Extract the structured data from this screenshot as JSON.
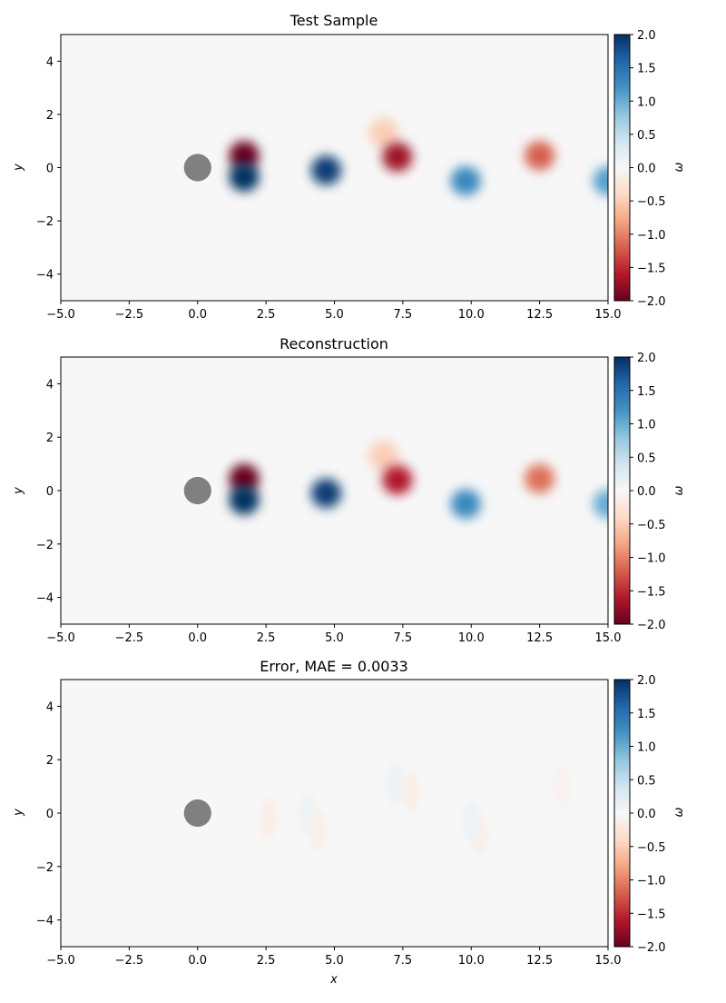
{
  "chart_data": [
    {
      "type": "heatmap",
      "title": "Test Sample",
      "xlabel": "",
      "ylabel": "y",
      "xlim": [
        -5,
        15
      ],
      "ylim": [
        -5,
        5
      ],
      "xticks": [
        "−5.0",
        "−2.5",
        "0.0",
        "2.5",
        "5.0",
        "7.5",
        "10.0",
        "12.5",
        "15.0"
      ],
      "yticks": [
        "−4",
        "−2",
        "0",
        "2",
        "4"
      ],
      "colorbar": {
        "label": "ω",
        "range": [
          -2,
          2
        ],
        "ticks": [
          "−2.0",
          "−1.5",
          "−1.0",
          "−0.5",
          "0.0",
          "0.5",
          "1.0",
          "1.5",
          "2.0"
        ],
        "colormap": "RdBu"
      },
      "obstacle": {
        "shape": "circle",
        "center": [
          0,
          0
        ],
        "radius": 0.5
      },
      "vortices": [
        {
          "x": 1.7,
          "y": 0.45,
          "value": -2.0
        },
        {
          "x": 1.7,
          "y": -0.35,
          "value": 2.0
        },
        {
          "x": 4.7,
          "y": -0.1,
          "value": 1.9
        },
        {
          "x": 6.8,
          "y": 1.3,
          "value": -0.5
        },
        {
          "x": 7.3,
          "y": 0.4,
          "value": -1.7
        },
        {
          "x": 9.8,
          "y": -0.5,
          "value": 1.3
        },
        {
          "x": 12.5,
          "y": 0.45,
          "value": -1.2
        },
        {
          "x": 15.0,
          "y": -0.5,
          "value": 1.1
        }
      ]
    },
    {
      "type": "heatmap",
      "title": "Reconstruction",
      "xlabel": "",
      "ylabel": "y",
      "xlim": [
        -5,
        15
      ],
      "ylim": [
        -5,
        5
      ],
      "xticks": [
        "−5.0",
        "−2.5",
        "0.0",
        "2.5",
        "5.0",
        "7.5",
        "10.0",
        "12.5",
        "15.0"
      ],
      "yticks": [
        "−4",
        "−2",
        "0",
        "2",
        "4"
      ],
      "colorbar": {
        "label": "ω",
        "range": [
          -2,
          2
        ],
        "ticks": [
          "−2.0",
          "−1.5",
          "−1.0",
          "−0.5",
          "0.0",
          "0.5",
          "1.0",
          "1.5",
          "2.0"
        ],
        "colormap": "RdBu"
      },
      "obstacle": {
        "shape": "circle",
        "center": [
          0,
          0
        ],
        "radius": 0.5
      },
      "vortices": [
        {
          "x": 1.7,
          "y": 0.45,
          "value": -2.0
        },
        {
          "x": 1.7,
          "y": -0.35,
          "value": 2.0
        },
        {
          "x": 4.7,
          "y": -0.1,
          "value": 1.9
        },
        {
          "x": 6.8,
          "y": 1.3,
          "value": -0.5
        },
        {
          "x": 7.3,
          "y": 0.4,
          "value": -1.6
        },
        {
          "x": 9.8,
          "y": -0.5,
          "value": 1.3
        },
        {
          "x": 12.5,
          "y": 0.45,
          "value": -1.1
        },
        {
          "x": 15.0,
          "y": -0.5,
          "value": 1.0
        }
      ]
    },
    {
      "type": "heatmap",
      "title": "Error, MAE = 0.0033",
      "xlabel": "x",
      "ylabel": "y",
      "xlim": [
        -5,
        15
      ],
      "ylim": [
        -5,
        5
      ],
      "xticks": [
        "−5.0",
        "−2.5",
        "0.0",
        "2.5",
        "5.0",
        "7.5",
        "10.0",
        "12.5",
        "15.0"
      ],
      "yticks": [
        "−4",
        "−2",
        "0",
        "2",
        "4"
      ],
      "colorbar": {
        "label": "ω",
        "range": [
          -2,
          2
        ],
        "ticks": [
          "−2.0",
          "−1.5",
          "−1.0",
          "−0.5",
          "0.0",
          "0.5",
          "1.0",
          "1.5",
          "2.0"
        ],
        "colormap": "RdBu"
      },
      "obstacle": {
        "shape": "circle",
        "center": [
          0,
          0
        ],
        "radius": 0.5
      },
      "vortices": [
        {
          "x": 2.6,
          "y": -0.2,
          "value": -0.12
        },
        {
          "x": 4.0,
          "y": 0.0,
          "value": 0.1
        },
        {
          "x": 4.4,
          "y": -0.6,
          "value": -0.1
        },
        {
          "x": 7.2,
          "y": 1.1,
          "value": 0.12
        },
        {
          "x": 7.8,
          "y": 0.8,
          "value": -0.12
        },
        {
          "x": 10.3,
          "y": -0.8,
          "value": -0.1
        },
        {
          "x": 10.0,
          "y": -0.3,
          "value": 0.08
        },
        {
          "x": 13.3,
          "y": 1.0,
          "value": -0.06
        }
      ]
    }
  ]
}
